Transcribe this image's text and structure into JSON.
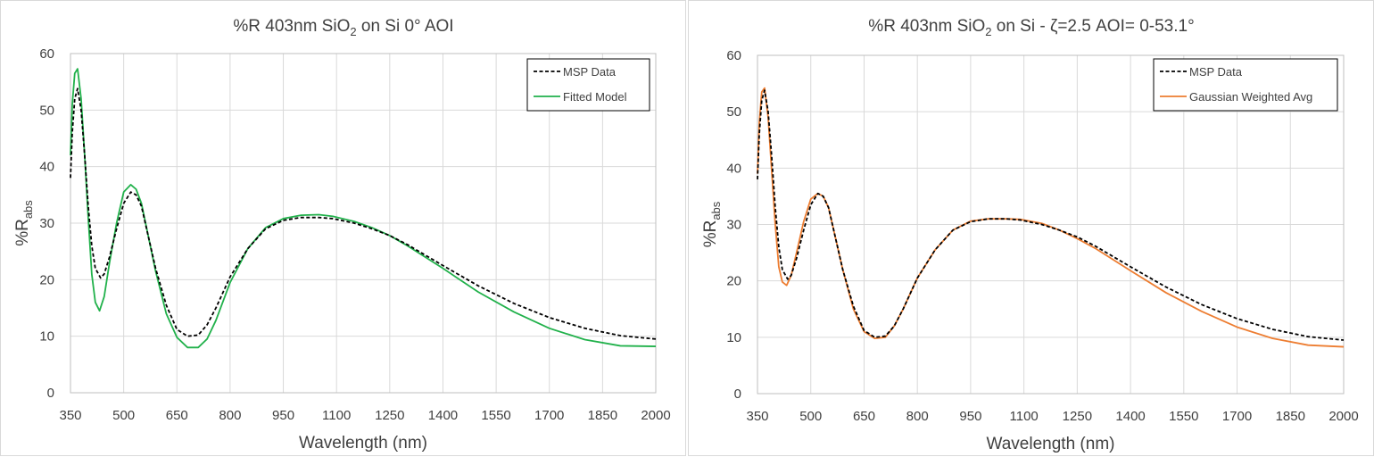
{
  "chart_data": [
    {
      "type": "line",
      "title": "%R 403nm SiO",
      "title_sub": "2",
      "title_rest": " on Si 0° AOI",
      "xlabel": "Wavelength (nm)",
      "ylabel": "%R",
      "ylabel_sub": "abs",
      "xlim": [
        350,
        2000
      ],
      "ylim": [
        0,
        60
      ],
      "xticks": [
        "350",
        "500",
        "650",
        "800",
        "950",
        "1100",
        "1250",
        "1400",
        "1550",
        "1700",
        "1850",
        "2000"
      ],
      "yticks": [
        "0",
        "10",
        "20",
        "30",
        "40",
        "50",
        "60"
      ],
      "grid": true,
      "legend_position": "top-right",
      "series": [
        {
          "name": "MSP Data",
          "color": "#000000",
          "dash": true,
          "x": [
            350,
            355,
            362,
            370,
            380,
            390,
            400,
            410,
            420,
            435,
            445,
            460,
            480,
            500,
            520,
            535,
            550,
            570,
            590,
            620,
            650,
            680,
            710,
            735,
            760,
            800,
            850,
            900,
            950,
            1000,
            1050,
            1090,
            1150,
            1200,
            1250,
            1300,
            1400,
            1500,
            1600,
            1700,
            1800,
            1900,
            2000
          ],
          "y": [
            38,
            46,
            52,
            53.8,
            50,
            42,
            33,
            26,
            22,
            20.3,
            21,
            24,
            29,
            33.5,
            35.5,
            35,
            33,
            27.5,
            22,
            15.5,
            11.2,
            10,
            10.2,
            12,
            15,
            20.5,
            25.5,
            29,
            30.5,
            31,
            31,
            30.8,
            30,
            29,
            27.8,
            26.2,
            22.5,
            18.9,
            15.8,
            13.3,
            11.4,
            10.1,
            9.5
          ]
        },
        {
          "name": "Fitted Model",
          "color": "#21b14b",
          "dash": false,
          "x": [
            350,
            355,
            362,
            370,
            380,
            390,
            400,
            410,
            420,
            432,
            445,
            460,
            480,
            500,
            520,
            535,
            550,
            570,
            590,
            620,
            650,
            680,
            710,
            735,
            760,
            800,
            850,
            900,
            950,
            1000,
            1050,
            1090,
            1150,
            1200,
            1250,
            1300,
            1400,
            1500,
            1600,
            1700,
            1800,
            1900,
            2000
          ],
          "y": [
            42,
            51,
            56.5,
            57.3,
            52,
            42,
            31,
            21,
            16,
            14.5,
            17,
            23,
            30,
            35.5,
            36.8,
            36,
            33.5,
            27.5,
            21.5,
            14,
            9.8,
            8,
            8,
            9.5,
            12.8,
            19.5,
            25.5,
            29.2,
            30.8,
            31.4,
            31.5,
            31.2,
            30.3,
            29.2,
            27.8,
            26,
            22,
            17.8,
            14.3,
            11.4,
            9.4,
            8.3,
            8.2
          ]
        }
      ]
    },
    {
      "type": "line",
      "title": "%R 403nm SiO",
      "title_sub": "2",
      "title_rest": " on Si - ζ=2.5 AOI= 0-53.1°",
      "xlabel": "Wavelength (nm)",
      "ylabel": "%R",
      "ylabel_sub": "abs",
      "xlim": [
        350,
        2000
      ],
      "ylim": [
        0,
        60
      ],
      "xticks": [
        "350",
        "500",
        "650",
        "800",
        "950",
        "1100",
        "1250",
        "1400",
        "1550",
        "1700",
        "1850",
        "2000"
      ],
      "yticks": [
        "0",
        "10",
        "20",
        "30",
        "40",
        "50",
        "60"
      ],
      "grid": true,
      "legend_position": "top-right",
      "series": [
        {
          "name": "MSP Data",
          "color": "#000000",
          "dash": true,
          "x": [
            350,
            355,
            362,
            370,
            380,
            390,
            400,
            410,
            420,
            435,
            445,
            460,
            480,
            500,
            520,
            535,
            550,
            570,
            590,
            620,
            650,
            680,
            710,
            735,
            760,
            800,
            850,
            900,
            950,
            1000,
            1050,
            1090,
            1150,
            1200,
            1250,
            1300,
            1400,
            1500,
            1600,
            1700,
            1800,
            1900,
            2000
          ],
          "y": [
            38,
            46,
            52,
            53.8,
            50,
            42,
            33,
            26,
            22,
            20.3,
            21,
            24,
            29,
            33.5,
            35.5,
            35,
            33,
            27.5,
            22,
            15.5,
            11.2,
            10,
            10.2,
            12,
            15,
            20.5,
            25.5,
            29,
            30.5,
            31,
            31,
            30.8,
            30,
            29,
            27.8,
            26.2,
            22.5,
            18.9,
            15.8,
            13.3,
            11.4,
            10.1,
            9.5
          ]
        },
        {
          "name": "Gaussian Weighted Avg",
          "color": "#ed7d31",
          "dash": false,
          "x": [
            350,
            355,
            362,
            370,
            380,
            390,
            400,
            410,
            420,
            432,
            445,
            460,
            480,
            500,
            520,
            535,
            550,
            570,
            590,
            620,
            650,
            680,
            710,
            735,
            760,
            800,
            850,
            900,
            950,
            1000,
            1050,
            1090,
            1150,
            1200,
            1250,
            1300,
            1400,
            1500,
            1600,
            1700,
            1800,
            1900,
            2000
          ],
          "y": [
            39,
            48,
            53.5,
            54.2,
            49,
            39.5,
            30,
            22.5,
            19.8,
            19.2,
            21,
            25,
            30.5,
            34.5,
            35.5,
            35,
            33,
            27.5,
            22,
            15,
            11,
            9.8,
            10,
            12,
            15,
            20.5,
            25.5,
            29,
            30.6,
            31,
            31,
            30.9,
            30.2,
            29,
            27.5,
            25.8,
            21.8,
            17.9,
            14.6,
            11.8,
            9.8,
            8.6,
            8.3
          ]
        }
      ]
    }
  ]
}
